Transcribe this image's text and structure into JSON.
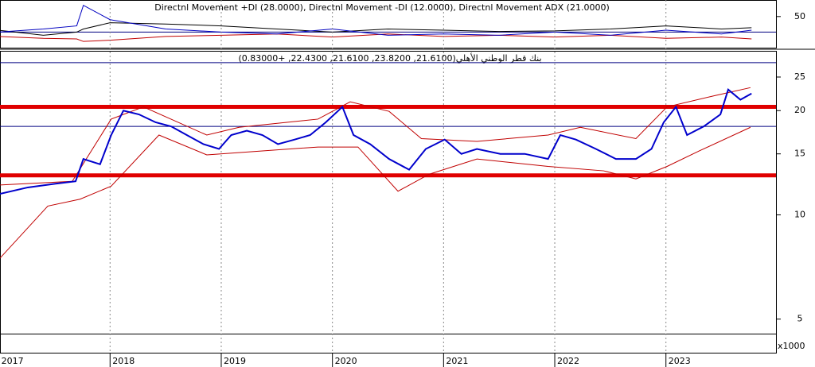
{
  "chart_data": [
    {
      "type": "line",
      "title": "Directnl Movement +DI (28.0000), Directnl Movement -DI (12.0000), Directnl Movement ADX (21.0000)",
      "xlim": [
        2017.01,
        2023.99
      ],
      "ylim": [
        0,
        74
      ],
      "yticks": [
        50
      ],
      "hlines": [
        {
          "value": 25,
          "color": "#000080"
        }
      ],
      "series": [
        {
          "color": "#000000",
          "x": [
            2017.0,
            2017.4,
            2017.7,
            2017.76,
            2018.0,
            2018.5,
            2019.0,
            2019.5,
            2020.0,
            2020.5,
            2021.0,
            2021.5,
            2022.0,
            2022.5,
            2023.0,
            2023.5,
            2023.77
          ],
          "values": [
            28,
            20,
            25,
            30,
            40,
            38,
            35,
            30,
            25,
            30,
            28,
            26,
            27,
            30,
            35,
            30,
            32
          ]
        },
        {
          "color": "#c00000",
          "x": [
            2017.0,
            2017.4,
            2017.7,
            2017.76,
            2018.0,
            2018.5,
            2019.0,
            2019.5,
            2020.0,
            2020.5,
            2021.0,
            2021.5,
            2022.0,
            2022.5,
            2023.0,
            2023.5,
            2023.77
          ],
          "values": [
            18,
            15,
            14,
            10,
            12,
            18,
            20,
            22,
            17,
            22,
            18,
            20,
            17,
            20,
            15,
            17,
            14
          ]
        },
        {
          "color": "#0000c0",
          "x": [
            2017.0,
            2017.4,
            2017.7,
            2017.76,
            2018.0,
            2018.5,
            2019.0,
            2019.5,
            2020.0,
            2020.5,
            2021.0,
            2021.5,
            2022.0,
            2022.5,
            2023.0,
            2023.5,
            2023.77
          ],
          "values": [
            25,
            30,
            35,
            68,
            45,
            30,
            25,
            22,
            30,
            20,
            22,
            20,
            25,
            20,
            28,
            22,
            28
          ]
        }
      ]
    },
    {
      "type": "line",
      "title": "بنك قطر الوطني الأهلي(21.6100, 23.8200, 21.6100, 22.4300, +0.83000)",
      "log": true,
      "grid": true,
      "xlim": [
        2017.01,
        2023.99
      ],
      "xticks": [
        2017,
        2018,
        2019,
        2020,
        2021,
        2022,
        2023
      ],
      "ylim": [
        4.54,
        29.6
      ],
      "yticks": [
        5,
        10,
        15,
        20,
        25
      ],
      "volume_unit": "x1000",
      "hlines": [
        {
          "value": 27.5,
          "color": "#000080"
        },
        {
          "value": 18,
          "color": "#000080"
        },
        {
          "value": 20.5,
          "color": "#e00000"
        },
        {
          "value": 13,
          "color": "#e00000"
        }
      ],
      "series": [
        {
          "color": "#c00000",
          "x": [
            2017.01,
            2017.66,
            2018.01,
            2018.3,
            2018.87,
            2019.16,
            2019.87,
            2020.16,
            2020.51,
            2020.8,
            2021.3,
            2021.94,
            2022.23,
            2022.73,
            2023.01,
            2023.44,
            2023.76
          ],
          "values": [
            12.2,
            12.5,
            18.9,
            20.5,
            17.0,
            17.9,
            18.9,
            21.2,
            19.9,
            16.6,
            16.3,
            17.0,
            17.9,
            16.6,
            20.5,
            22.1,
            23.3
          ]
        },
        {
          "color": "#c00000",
          "x": [
            2017.01,
            2017.44,
            2017.73,
            2018.01,
            2018.44,
            2018.87,
            2019.37,
            2019.87,
            2020.23,
            2020.59,
            2020.87,
            2021.3,
            2021.94,
            2022.44,
            2022.73,
            2023.01,
            2023.3,
            2023.76
          ],
          "values": [
            7.5,
            10.6,
            11.1,
            12.1,
            17.0,
            14.9,
            15.3,
            15.7,
            15.7,
            11.7,
            13.1,
            14.5,
            13.8,
            13.4,
            12.7,
            13.8,
            15.3,
            17.9
          ]
        },
        {
          "color": "#0000cc",
          "x": [
            2017.01,
            2017.26,
            2017.51,
            2017.69,
            2017.76,
            2017.91,
            2018.01,
            2018.12,
            2018.26,
            2018.41,
            2018.55,
            2018.69,
            2018.84,
            2018.98,
            2019.09,
            2019.23,
            2019.37,
            2019.51,
            2019.66,
            2019.8,
            2019.94,
            2020.09,
            2020.19,
            2020.34,
            2020.51,
            2020.69,
            2020.84,
            2021.01,
            2021.16,
            2021.3,
            2021.51,
            2021.73,
            2021.94,
            2022.05,
            2022.19,
            2022.37,
            2022.55,
            2022.73,
            2022.87,
            2022.98,
            2023.09,
            2023.19,
            2023.34,
            2023.49,
            2023.56,
            2023.67,
            2023.77
          ],
          "values": [
            11.5,
            12,
            12.3,
            12.5,
            14.5,
            14,
            17,
            20,
            19.5,
            18.5,
            18,
            17,
            16,
            15.5,
            17,
            17.5,
            17,
            16,
            16.5,
            17,
            18.5,
            20.5,
            17,
            16,
            14.5,
            13.5,
            15.5,
            16.5,
            15,
            15.5,
            15,
            15,
            14.5,
            17,
            16.5,
            15.5,
            14.5,
            14.5,
            15.5,
            18.5,
            20.5,
            17,
            18,
            19.5,
            23,
            21.5,
            22.4
          ]
        }
      ]
    }
  ]
}
